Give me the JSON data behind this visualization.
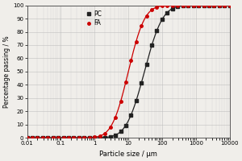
{
  "title": "",
  "xlabel": "Particle size / μm",
  "ylabel": "Percentage passing / %",
  "xlim_log": [
    0.01,
    10000
  ],
  "ylim": [
    0,
    100
  ],
  "yticks": [
    0,
    10,
    20,
    30,
    40,
    50,
    60,
    70,
    80,
    90,
    100
  ],
  "xticks": [
    0.01,
    0.1,
    1,
    10,
    100,
    1000,
    10000
  ],
  "xtick_labels": [
    "0.01",
    "0.1",
    "1",
    "10",
    "100",
    "1000",
    "10000"
  ],
  "PC_color": "#222222",
  "FA_color": "#cc0000",
  "background_color": "#f0eeea",
  "legend_labels": [
    "PC",
    "FA"
  ],
  "PC_d50": 30,
  "PC_sigma": 0.42,
  "FA_d50": 10,
  "FA_sigma": 0.38,
  "n_markers": 40,
  "marker_size": 2.5,
  "line_width": 0.9
}
